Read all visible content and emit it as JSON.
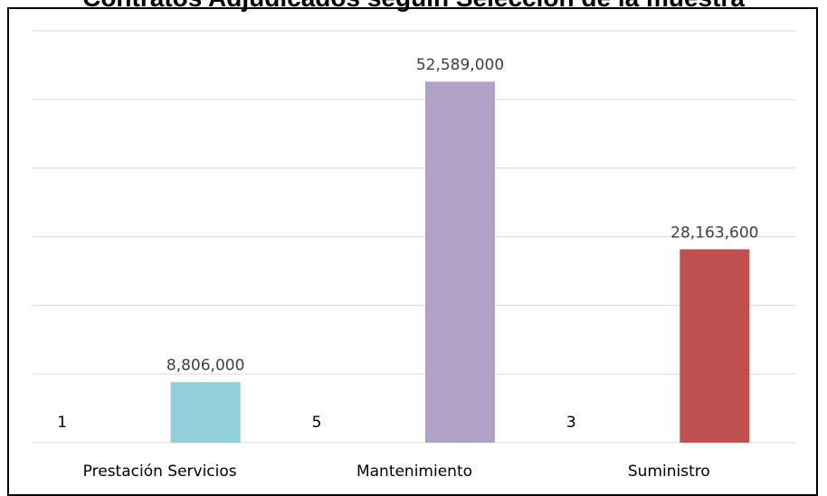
{
  "chart_data": {
    "type": "bar",
    "title": "Contratos Adjudicados seguin Selección de la muestra",
    "categories": [
      "Prestación Servicios",
      "Mantenimiento",
      "Suministro"
    ],
    "values": [
      8806000,
      52589000,
      28163600
    ],
    "value_labels": [
      "8,806,000",
      "52,589,000",
      "28,163,600"
    ],
    "counts": [
      "1",
      "5",
      "3"
    ],
    "colors": [
      "#92cddc",
      "#b2a1c7",
      "#c0504d"
    ],
    "ylim": [
      0,
      60000000
    ],
    "grid": true,
    "legend": "none"
  }
}
